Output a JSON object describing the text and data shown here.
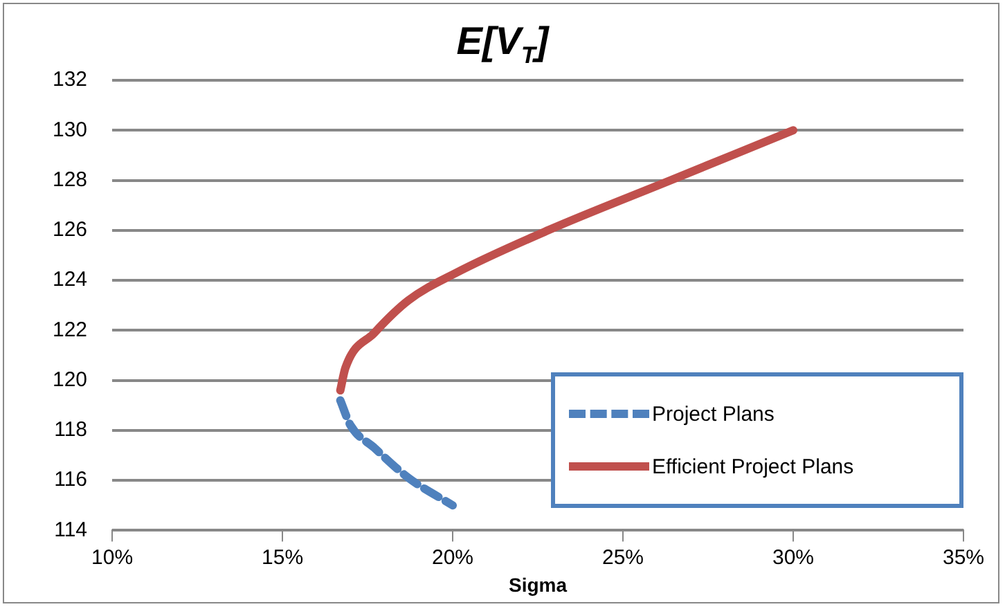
{
  "chart_data": {
    "type": "line",
    "title": "E[V$_{T}$]",
    "xlabel": "Sigma",
    "xlim": [
      10,
      35
    ],
    "xticks": [
      {
        "value": 10,
        "label": "10%"
      },
      {
        "value": 15,
        "label": "15%"
      },
      {
        "value": 20,
        "label": "20%"
      },
      {
        "value": 25,
        "label": "25%"
      },
      {
        "value": 30,
        "label": "30%"
      },
      {
        "value": 35,
        "label": "35%"
      }
    ],
    "ylim": [
      114,
      132
    ],
    "yticks": [
      114,
      116,
      118,
      120,
      122,
      124,
      126,
      128,
      130,
      132
    ],
    "grid": "y",
    "legend": "bottom right",
    "marker": "none",
    "series": [
      {
        "name": "Project Plans",
        "color": "#4f81bd",
        "line_style": "dashed",
        "x": [
          16.7,
          17.0,
          17.7,
          18.7,
          20.0
        ],
        "values": [
          119.2,
          118.2,
          117.3,
          116.1,
          115.0
        ]
      },
      {
        "name": "Efficient Project Plans",
        "color": "#c0504d",
        "line_style": "solid",
        "x": [
          16.7,
          16.85,
          17.7,
          18.7,
          20.1,
          22.8,
          26.4,
          30.0
        ],
        "values": [
          119.6,
          120.5,
          121.9,
          123.2,
          124.3,
          126.0,
          128.0,
          130.0
        ]
      }
    ]
  }
}
